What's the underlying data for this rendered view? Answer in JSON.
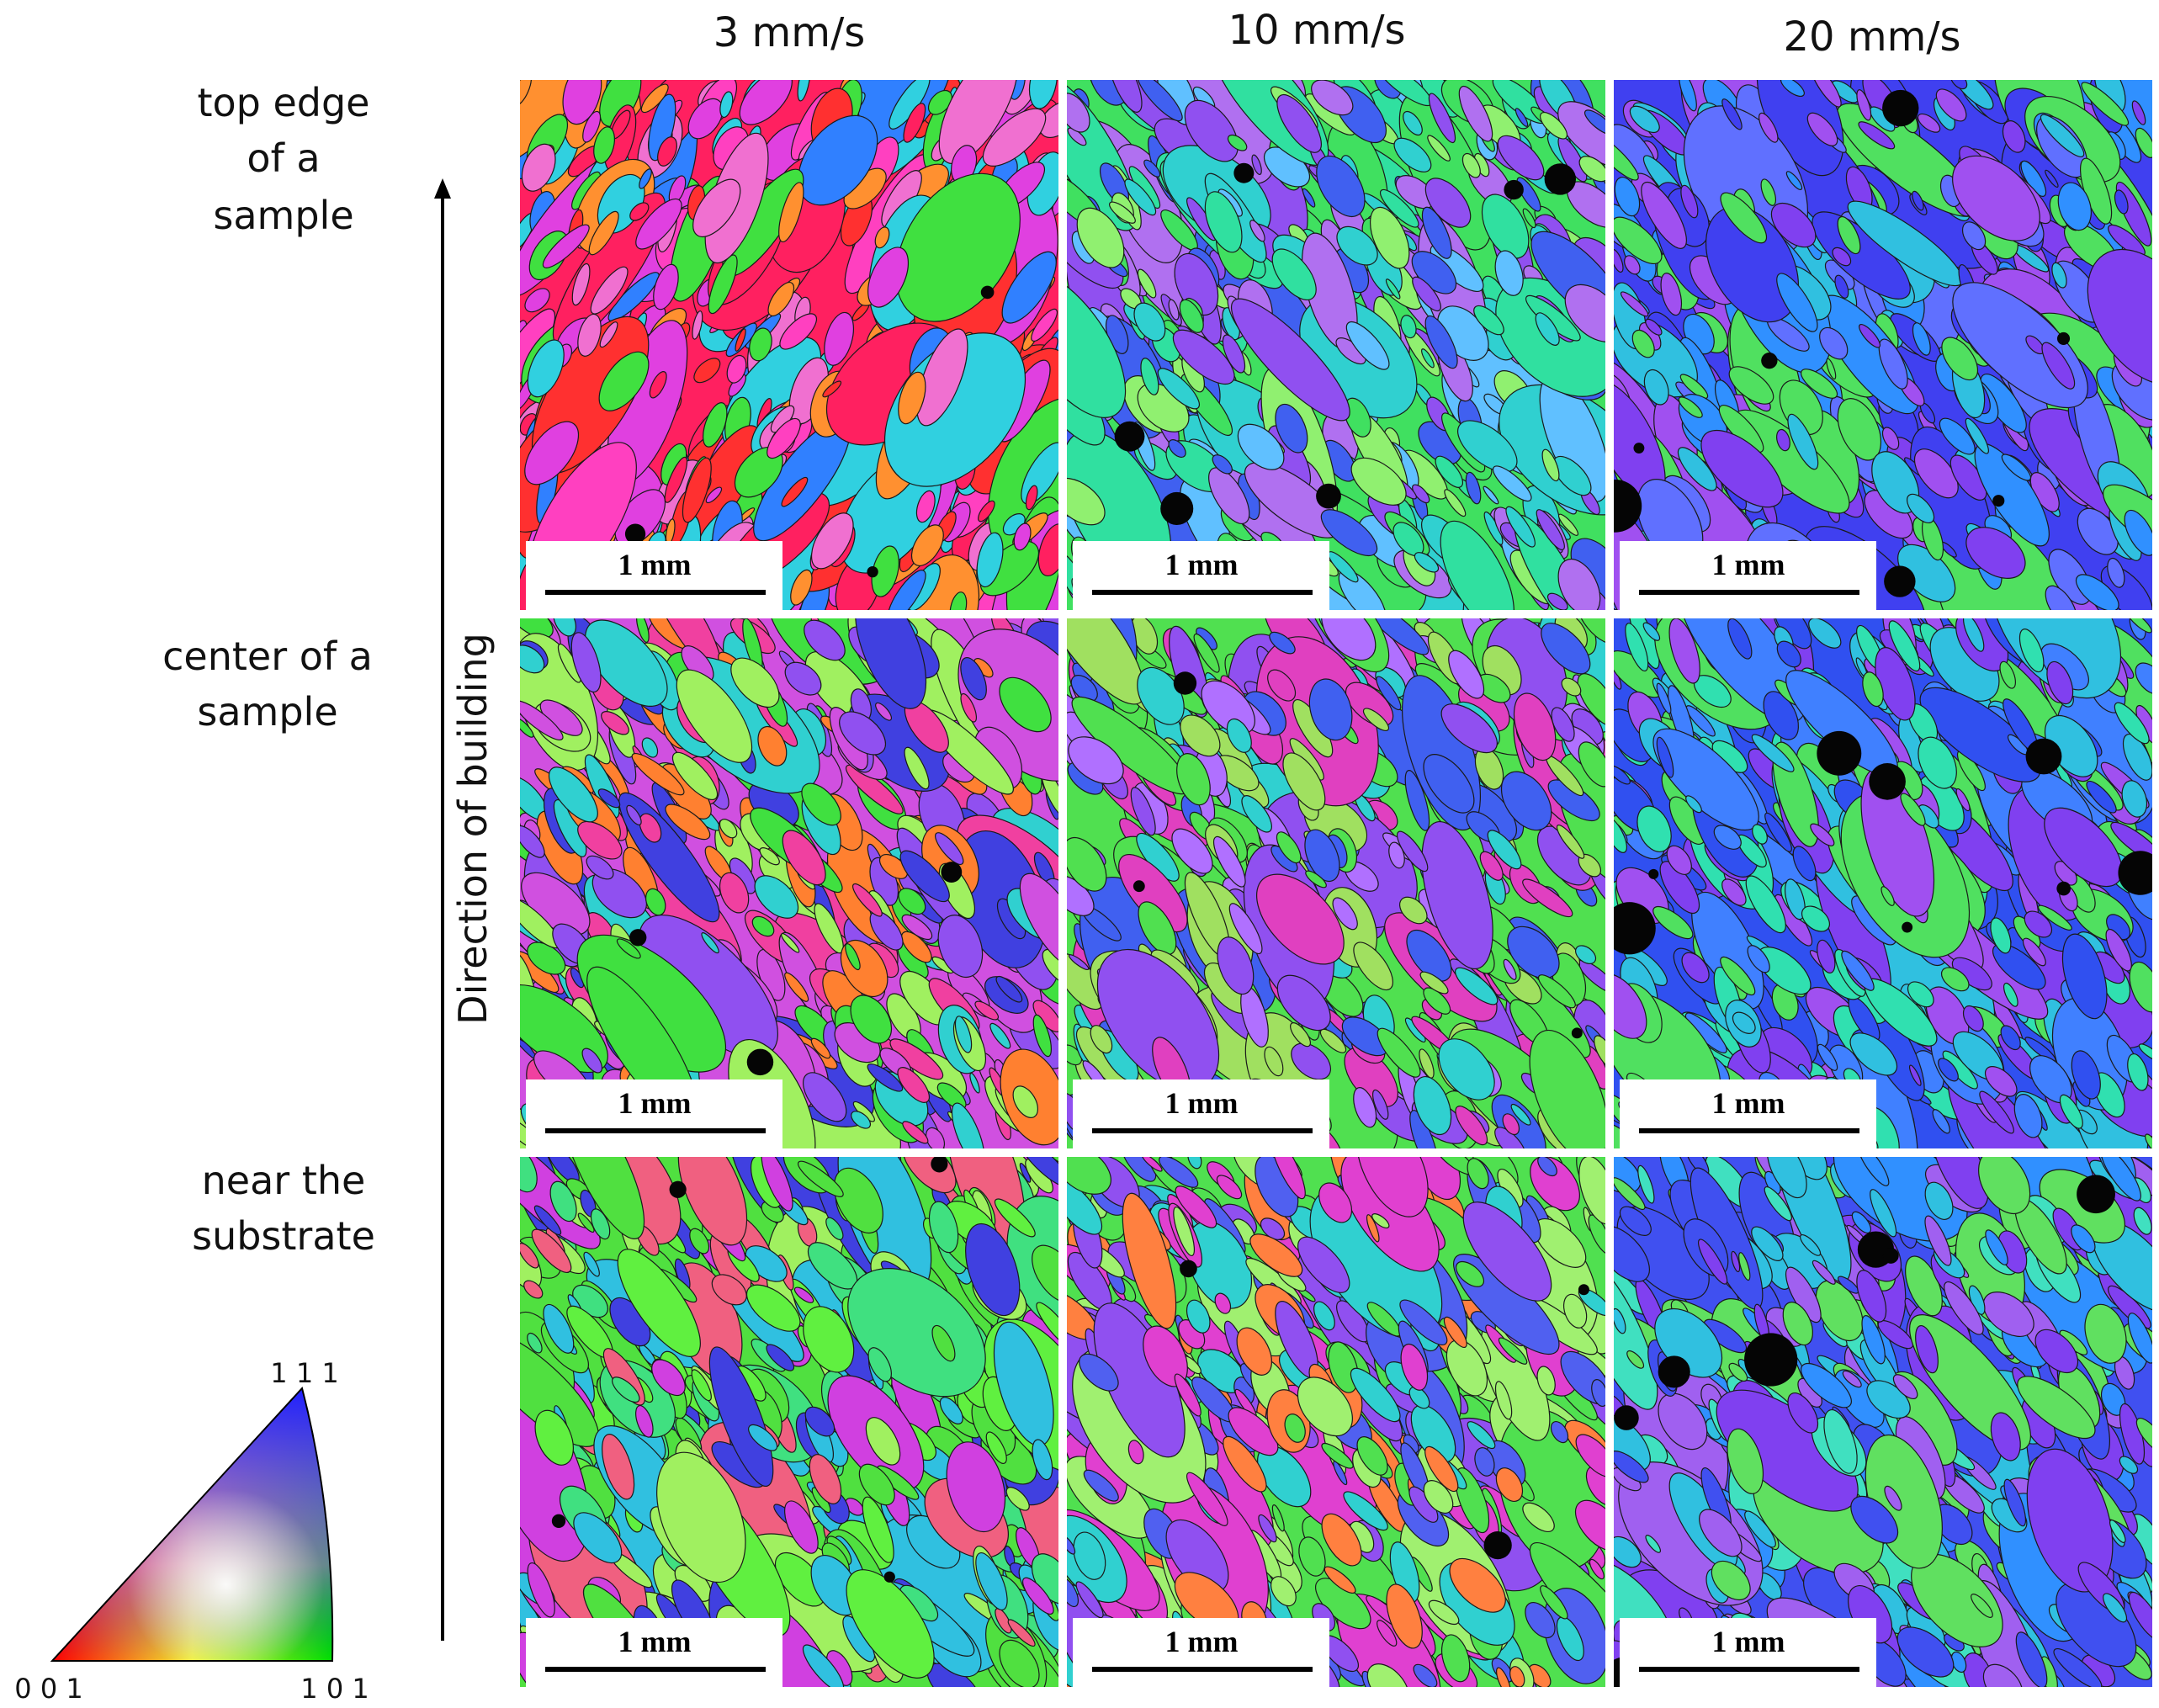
{
  "column_headers": [
    "3 mm/s",
    "10 mm/s",
    "20 mm/s"
  ],
  "row_labels": [
    [
      "top edge",
      "of a",
      "sample"
    ],
    [
      "center of a",
      "sample"
    ],
    [
      "near the",
      "substrate"
    ]
  ],
  "axis_label": "Direction of building",
  "legend": {
    "top": "1 1 1",
    "bottom_left": "0 0 1",
    "bottom_right": "1 0 1"
  },
  "panels": [
    {
      "scale_bar": "1 mm"
    },
    {
      "scale_bar": "1 mm"
    },
    {
      "scale_bar": "1 mm"
    },
    {
      "scale_bar": "1 mm"
    },
    {
      "scale_bar": "1 mm"
    },
    {
      "scale_bar": "1 mm"
    },
    {
      "scale_bar": "1 mm"
    },
    {
      "scale_bar": "1 mm"
    },
    {
      "scale_bar": "1 mm"
    }
  ]
}
